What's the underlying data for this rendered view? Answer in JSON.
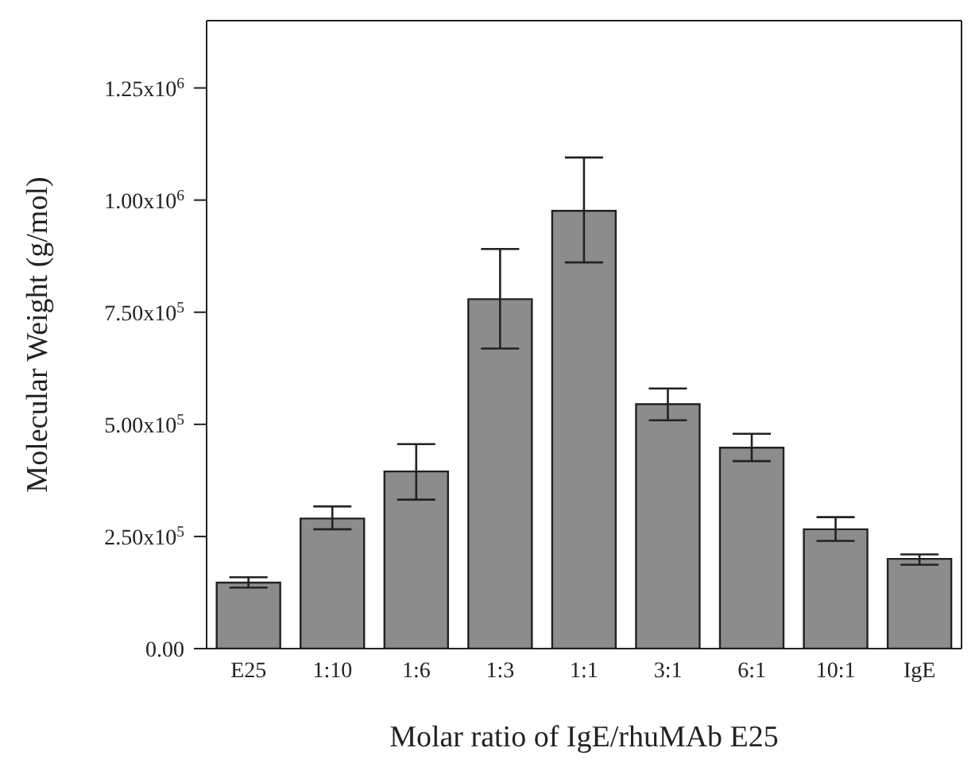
{
  "chart_data": {
    "type": "bar",
    "xlabel": "Molar ratio of IgE/rhuMAb E25",
    "ylabel": "Molecular Weight (g/mol)",
    "categories": [
      "E25",
      "1:10",
      "1:6",
      "1:3",
      "1:1",
      "3:1",
      "6:1",
      "10:1",
      "IgE"
    ],
    "values": [
      147000,
      290000,
      395000,
      779000,
      976000,
      545000,
      448000,
      266000,
      200000
    ],
    "errors": [
      [
        136000,
        159000
      ],
      [
        266000,
        317000
      ],
      [
        332000,
        456000
      ],
      [
        669000,
        891000
      ],
      [
        861000,
        1095000
      ],
      [
        509000,
        580000
      ],
      [
        418000,
        479000
      ],
      [
        240000,
        293000
      ],
      [
        187000,
        210000
      ]
    ],
    "color": "#8c8c8c",
    "ylim": [
      0,
      1400000
    ],
    "yticks": [
      {
        "value": 0,
        "label": "0.00"
      },
      {
        "value": 250000,
        "label": "2.50x10$^{5}$"
      },
      {
        "value": 500000,
        "label": "5.00x10$^{5}$"
      },
      {
        "value": 750000,
        "label": "7.50x10$^{5}$"
      },
      {
        "value": 1000000,
        "label": "1.00x10$^{6}$"
      },
      {
        "value": 1250000,
        "label": "1.25x10$^{6}$"
      }
    ],
    "grid": false
  }
}
